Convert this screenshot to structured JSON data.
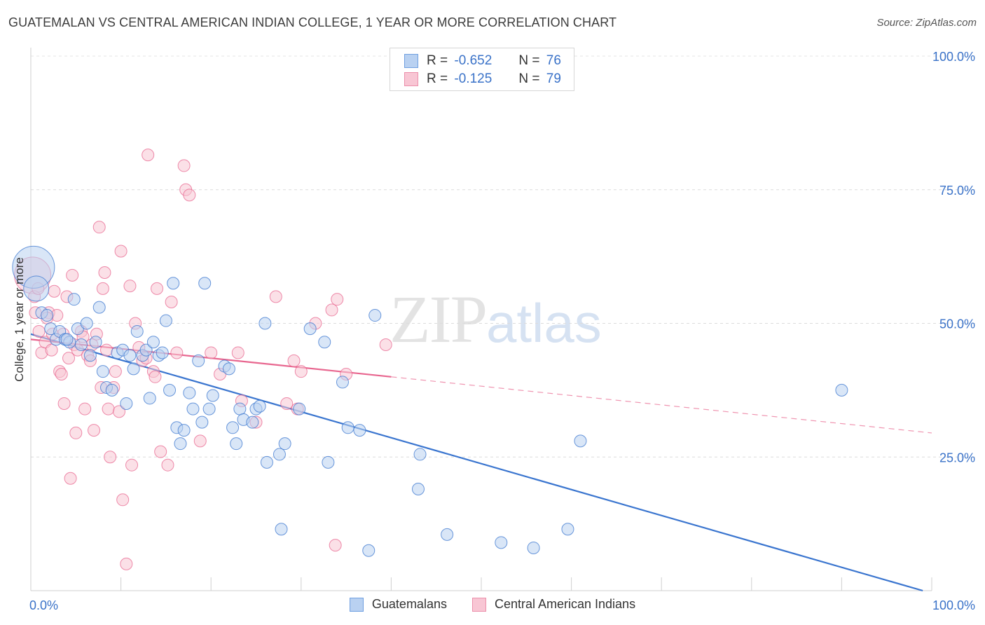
{
  "header": {
    "title": "GUATEMALAN VS CENTRAL AMERICAN INDIAN COLLEGE, 1 YEAR OR MORE CORRELATION CHART",
    "source": "Source: ZipAtlas.com"
  },
  "watermark": {
    "zip": "ZIP",
    "atlas": "atlas"
  },
  "legend": {
    "r_label": "R =",
    "n_label": "N =",
    "series": [
      {
        "r": "-0.652",
        "n": "76",
        "fill": "#b9d1f1",
        "stroke": "#6f9fe0"
      },
      {
        "r": "-0.125",
        "n": "79",
        "fill": "#f8c6d4",
        "stroke": "#ec8fab"
      }
    ]
  },
  "bottom_legend": [
    "Guatemalans",
    "Central American Indians"
  ],
  "chart_data": {
    "type": "scatter",
    "title": "GUATEMALAN VS CENTRAL AMERICAN INDIAN COLLEGE, 1 YEAR OR MORE CORRELATION CHART",
    "xlabel": "",
    "ylabel": "College, 1 year or more",
    "xlim": [
      0,
      100
    ],
    "ylim": [
      0,
      100
    ],
    "x_tick_labels": [
      "0.0%",
      "100.0%"
    ],
    "y_ticks": [
      25,
      50,
      75,
      100
    ],
    "y_tick_labels": [
      "25.0%",
      "50.0%",
      "75.0%",
      "100.0%"
    ],
    "grid": true,
    "legend_position": "top-center",
    "colors": {
      "guatemalans": "#3a75cf",
      "cai": "#e8668f",
      "tick_label": "#3a72c8"
    },
    "series": [
      {
        "name": "Guatemalans",
        "color": "#3a75cf",
        "fill": "#b9d1f1",
        "trendline": {
          "x": [
            0,
            99
          ],
          "y": [
            48.0,
            0.0
          ],
          "solid_to": 99
        },
        "points": [
          [
            0.3,
            60.5
          ],
          [
            0.6,
            56.5
          ],
          [
            1.2,
            52.0
          ],
          [
            1.8,
            51.5
          ],
          [
            2.2,
            49.0
          ],
          [
            2.8,
            47.0
          ],
          [
            3.2,
            48.5
          ],
          [
            3.8,
            47.0
          ],
          [
            4.3,
            46.5
          ],
          [
            4.8,
            54.5
          ],
          [
            5.2,
            49.0
          ],
          [
            5.6,
            46.0
          ],
          [
            6.2,
            50.0
          ],
          [
            6.6,
            44.0
          ],
          [
            7.2,
            46.5
          ],
          [
            7.6,
            53.0
          ],
          [
            8.0,
            41.0
          ],
          [
            8.4,
            38.0
          ],
          [
            9.0,
            37.5
          ],
          [
            9.6,
            44.5
          ],
          [
            10.2,
            45.0
          ],
          [
            10.6,
            35.0
          ],
          [
            11.0,
            44.0
          ],
          [
            11.4,
            41.5
          ],
          [
            11.8,
            48.5
          ],
          [
            12.4,
            44.0
          ],
          [
            12.8,
            45.0
          ],
          [
            13.2,
            36.0
          ],
          [
            13.6,
            46.5
          ],
          [
            14.2,
            44.0
          ],
          [
            14.6,
            44.5
          ],
          [
            15.0,
            50.5
          ],
          [
            15.4,
            37.5
          ],
          [
            15.8,
            57.5
          ],
          [
            16.2,
            30.5
          ],
          [
            16.6,
            27.5
          ],
          [
            17.0,
            30.0
          ],
          [
            17.6,
            37.0
          ],
          [
            18.0,
            34.0
          ],
          [
            18.6,
            43.0
          ],
          [
            19.0,
            31.5
          ],
          [
            19.3,
            57.5
          ],
          [
            19.8,
            34.0
          ],
          [
            20.2,
            36.5
          ],
          [
            21.5,
            42.0
          ],
          [
            22.0,
            41.5
          ],
          [
            22.4,
            30.5
          ],
          [
            22.8,
            27.5
          ],
          [
            23.2,
            34.0
          ],
          [
            23.6,
            32.0
          ],
          [
            24.6,
            31.5
          ],
          [
            25.0,
            34.0
          ],
          [
            25.4,
            34.5
          ],
          [
            26.0,
            50.0
          ],
          [
            26.2,
            24.0
          ],
          [
            27.6,
            25.5
          ],
          [
            27.8,
            11.5
          ],
          [
            28.2,
            27.5
          ],
          [
            29.8,
            34.0
          ],
          [
            31.0,
            49.0
          ],
          [
            32.6,
            46.5
          ],
          [
            33.0,
            24.0
          ],
          [
            34.6,
            39.0
          ],
          [
            35.2,
            30.5
          ],
          [
            36.5,
            30.0
          ],
          [
            37.5,
            7.5
          ],
          [
            38.2,
            51.5
          ],
          [
            43.2,
            25.5
          ],
          [
            43.0,
            19.0
          ],
          [
            46.2,
            10.5
          ],
          [
            52.2,
            9.0
          ],
          [
            55.8,
            8.0
          ],
          [
            59.6,
            11.5
          ],
          [
            61.0,
            28.0
          ],
          [
            90.0,
            37.5
          ],
          [
            4.0,
            47.0
          ]
        ],
        "point_sizes": {
          "0": 30,
          "1": 18
        }
      },
      {
        "name": "Central American Indians",
        "color": "#e8668f",
        "fill": "#f8c6d4",
        "trendline": {
          "x": [
            0,
            100
          ],
          "y": [
            47.0,
            29.5
          ],
          "solid_to": 40
        },
        "points": [
          [
            0.2,
            59.0
          ],
          [
            0.4,
            55.0
          ],
          [
            0.5,
            52.0
          ],
          [
            0.9,
            48.5
          ],
          [
            1.2,
            44.5
          ],
          [
            1.6,
            46.5
          ],
          [
            2.0,
            52.0
          ],
          [
            2.3,
            45.0
          ],
          [
            2.6,
            56.0
          ],
          [
            2.9,
            51.5
          ],
          [
            3.2,
            41.0
          ],
          [
            3.4,
            40.5
          ],
          [
            3.6,
            48.0
          ],
          [
            3.7,
            35.0
          ],
          [
            4.0,
            55.0
          ],
          [
            4.2,
            43.5
          ],
          [
            4.4,
            21.0
          ],
          [
            4.6,
            59.0
          ],
          [
            4.8,
            46.0
          ],
          [
            5.0,
            29.5
          ],
          [
            5.2,
            45.0
          ],
          [
            5.6,
            48.5
          ],
          [
            5.8,
            47.5
          ],
          [
            6.0,
            34.0
          ],
          [
            6.3,
            44.0
          ],
          [
            6.6,
            43.0
          ],
          [
            6.8,
            46.0
          ],
          [
            7.0,
            30.0
          ],
          [
            7.3,
            48.0
          ],
          [
            7.6,
            68.0
          ],
          [
            7.8,
            38.0
          ],
          [
            8.0,
            56.5
          ],
          [
            8.2,
            59.5
          ],
          [
            8.4,
            45.0
          ],
          [
            8.6,
            34.0
          ],
          [
            8.8,
            25.0
          ],
          [
            9.2,
            38.0
          ],
          [
            9.4,
            41.0
          ],
          [
            9.8,
            33.5
          ],
          [
            10.0,
            63.5
          ],
          [
            10.2,
            17.0
          ],
          [
            10.6,
            5.0
          ],
          [
            11.0,
            57.0
          ],
          [
            11.2,
            23.5
          ],
          [
            11.6,
            50.0
          ],
          [
            12.0,
            45.5
          ],
          [
            12.4,
            43.0
          ],
          [
            12.8,
            43.5
          ],
          [
            13.0,
            81.5
          ],
          [
            13.6,
            41.0
          ],
          [
            13.8,
            40.0
          ],
          [
            14.0,
            56.5
          ],
          [
            14.4,
            26.0
          ],
          [
            15.2,
            23.5
          ],
          [
            15.6,
            54.0
          ],
          [
            16.2,
            44.5
          ],
          [
            17.0,
            79.5
          ],
          [
            17.2,
            75.0
          ],
          [
            17.6,
            74.0
          ],
          [
            18.8,
            28.0
          ],
          [
            20.0,
            44.5
          ],
          [
            21.0,
            40.5
          ],
          [
            23.0,
            44.5
          ],
          [
            23.4,
            35.5
          ],
          [
            25.0,
            31.5
          ],
          [
            27.2,
            55.0
          ],
          [
            28.4,
            35.0
          ],
          [
            29.2,
            43.0
          ],
          [
            29.6,
            34.0
          ],
          [
            30.0,
            41.0
          ],
          [
            31.6,
            50.0
          ],
          [
            33.4,
            52.5
          ],
          [
            33.8,
            8.5
          ],
          [
            34.0,
            54.5
          ],
          [
            35.0,
            40.5
          ],
          [
            39.4,
            46.0
          ],
          [
            0.8,
            56.5
          ],
          [
            1.8,
            51.0
          ],
          [
            2.4,
            48.0
          ]
        ],
        "point_sizes": {
          "0": 26
        }
      }
    ]
  }
}
